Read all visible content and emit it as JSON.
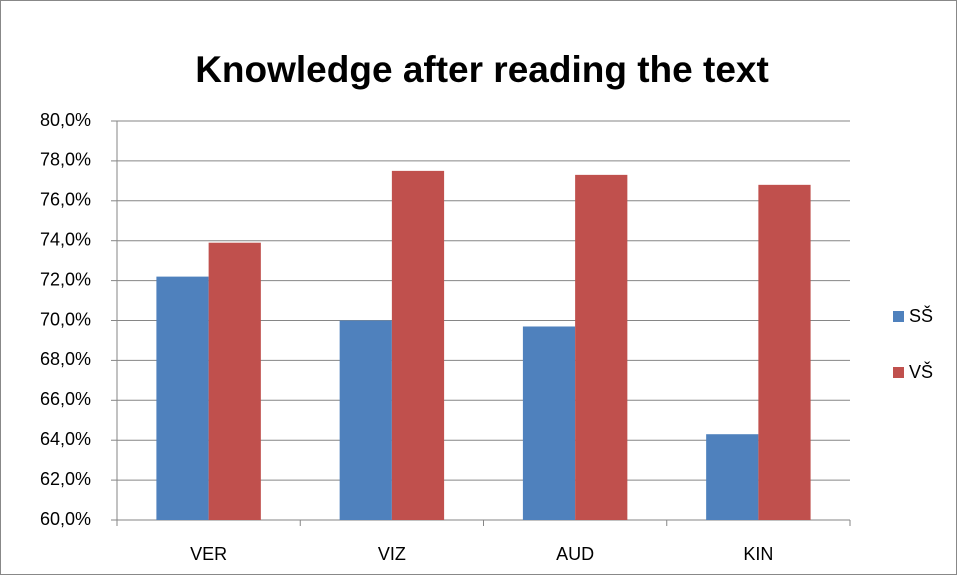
{
  "chart_data": {
    "type": "bar",
    "title": "Knowledge after reading the text",
    "categories": [
      "VER",
      "VIZ",
      "AUD",
      "KIN"
    ],
    "series": [
      {
        "name": "SŠ",
        "color": "#4f81bd",
        "values": [
          72.2,
          70.0,
          69.7,
          64.3
        ]
      },
      {
        "name": "VŠ",
        "color": "#c0504d",
        "values": [
          73.9,
          77.5,
          77.3,
          76.8
        ]
      }
    ],
    "ylim": [
      60,
      80
    ],
    "yticks": [
      {
        "value": 60,
        "label": "60,0%"
      },
      {
        "value": 62,
        "label": "62,0%"
      },
      {
        "value": 64,
        "label": "64,0%"
      },
      {
        "value": 66,
        "label": "66,0%"
      },
      {
        "value": 68,
        "label": "68,0%"
      },
      {
        "value": 70,
        "label": "70,0%"
      },
      {
        "value": 72,
        "label": "72,0%"
      },
      {
        "value": 74,
        "label": "74,0%"
      },
      {
        "value": 76,
        "label": "76,0%"
      },
      {
        "value": 78,
        "label": "78,0%"
      },
      {
        "value": 80,
        "label": "80,0%"
      }
    ],
    "grid": true,
    "legend": "right"
  }
}
